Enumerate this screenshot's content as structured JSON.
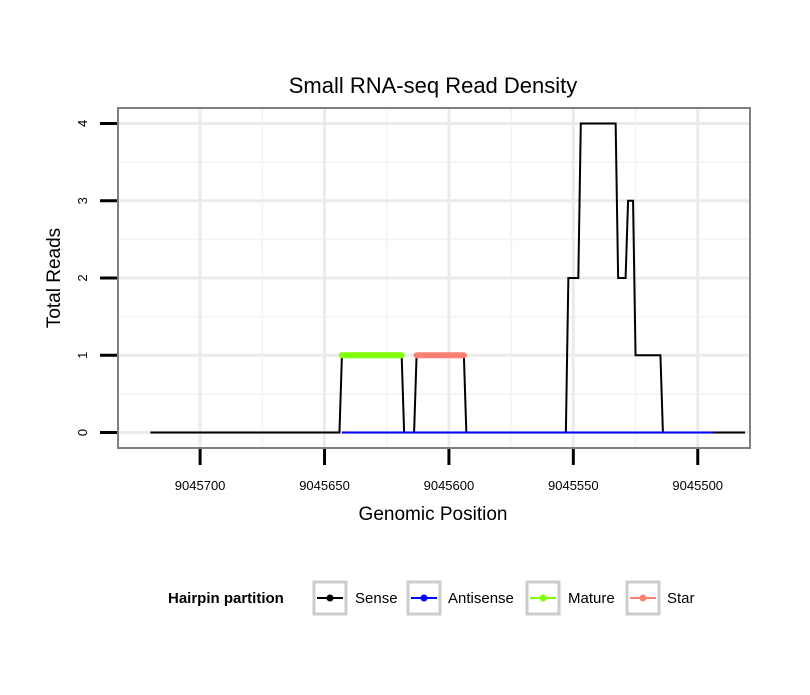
{
  "chart_data": {
    "type": "line",
    "title": "Small RNA-seq Read Density",
    "xlabel": "Genomic Position",
    "ylabel": "Total Reads",
    "x_reversed": true,
    "xlim": [
      9045733,
      9045479
    ],
    "ylim": [
      -0.2,
      4.2
    ],
    "xticks": [
      9045700,
      9045650,
      9045600,
      9045550,
      9045500
    ],
    "xtick_labels": [
      "9045700",
      "9045650",
      "9045600",
      "9045550",
      "9045500"
    ],
    "yticks": [
      0,
      1,
      2,
      3,
      4
    ],
    "ytick_labels": [
      "0",
      "1",
      "2",
      "3",
      "4"
    ],
    "grid": true,
    "legend": {
      "title": "Hairpin partition",
      "position": "bottom",
      "entries": [
        {
          "name": "Sense",
          "color": "#000000"
        },
        {
          "name": "Antisense",
          "color": "#0000ff"
        },
        {
          "name": "Mature",
          "color": "#7fff00"
        },
        {
          "name": "Star",
          "color": "#fa8072"
        }
      ]
    },
    "series": [
      {
        "name": "Sense",
        "color": "#000000",
        "x": [
          9045720,
          9045644,
          9045643,
          9045619,
          9045618,
          9045614,
          9045613,
          9045594,
          9045593,
          9045553,
          9045552,
          9045548,
          9045547,
          9045533,
          9045532,
          9045529,
          9045528,
          9045526,
          9045525,
          9045515,
          9045514,
          9045494,
          9045493,
          9045481
        ],
        "y": [
          0,
          0,
          1,
          1,
          0,
          0,
          1,
          1,
          0,
          0,
          2,
          2,
          4,
          4,
          2,
          2,
          3,
          3,
          1,
          1,
          0,
          0,
          0,
          0
        ]
      },
      {
        "name": "Antisense",
        "color": "#0000ff",
        "x": [
          9045643,
          9045494
        ],
        "y": [
          0,
          0
        ]
      },
      {
        "name": "Mature",
        "color": "#7fff00",
        "x": [
          9045643,
          9045619
        ],
        "y": [
          1,
          1
        ]
      },
      {
        "name": "Star",
        "color": "#fa8072",
        "x": [
          9045613,
          9045594
        ],
        "y": [
          1,
          1
        ]
      }
    ]
  }
}
